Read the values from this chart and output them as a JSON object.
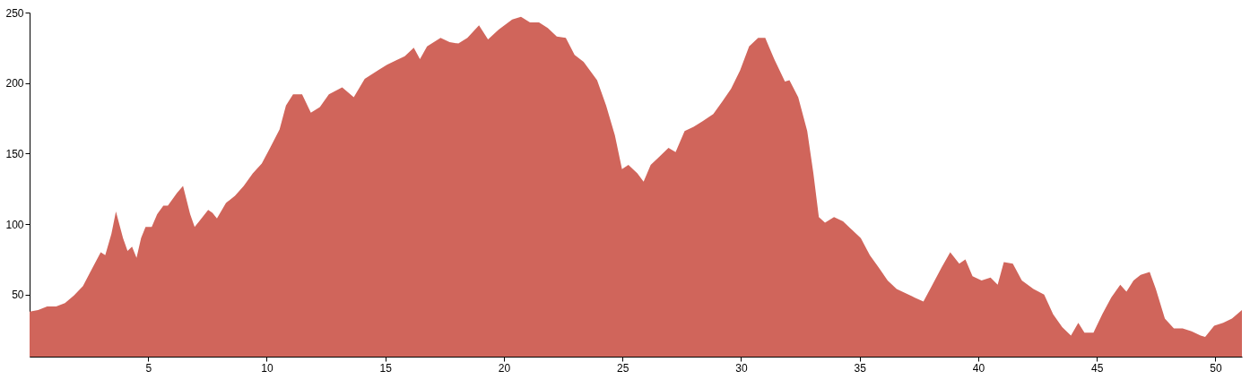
{
  "chart_data": {
    "type": "area",
    "x": [
      0,
      0.36,
      0.74,
      1.12,
      1.49,
      1.87,
      2.25,
      2.62,
      3.0,
      3.19,
      3.45,
      3.64,
      3.94,
      4.13,
      4.32,
      4.51,
      4.7,
      4.89,
      5.15,
      5.38,
      5.64,
      5.83,
      6.21,
      6.47,
      6.77,
      6.96,
      7.15,
      7.53,
      7.71,
      7.9,
      8.28,
      8.66,
      9.03,
      9.41,
      9.79,
      10.17,
      10.54,
      10.81,
      11.11,
      11.49,
      11.86,
      12.24,
      12.62,
      13.18,
      13.67,
      14.13,
      14.69,
      15.07,
      15.44,
      15.82,
      16.2,
      16.46,
      16.76,
      17.33,
      17.71,
      18.08,
      18.46,
      18.95,
      19.33,
      19.78,
      20.35,
      20.72,
      21.1,
      21.48,
      21.85,
      22.23,
      22.61,
      22.98,
      23.36,
      23.93,
      24.31,
      24.68,
      24.98,
      25.25,
      25.63,
      25.89,
      26.19,
      26.57,
      26.94,
      27.24,
      27.62,
      28.0,
      28.38,
      28.83,
      29.21,
      29.58,
      29.96,
      30.34,
      30.72,
      31.02,
      31.17,
      31.4,
      31.85,
      32.04,
      32.41,
      32.79,
      33.05,
      33.28,
      33.54,
      33.92,
      34.3,
      34.67,
      35.05,
      35.43,
      35.81,
      36.18,
      36.56,
      36.94,
      37.31,
      37.69,
      38.07,
      38.45,
      38.82,
      39.2,
      39.46,
      39.76,
      40.14,
      40.52,
      40.82,
      41.08,
      41.46,
      41.84,
      42.33,
      42.78,
      43.16,
      43.54,
      43.91,
      44.22,
      44.48,
      44.86,
      45.23,
      45.61,
      45.99,
      46.25,
      46.55,
      46.85,
      47.23,
      47.49,
      47.87,
      48.25,
      48.62,
      49.0,
      49.38,
      49.57,
      49.95,
      50.33,
      50.7,
      51.12
    ],
    "series": [
      {
        "color": "#d0655b",
        "values": [
          38,
          39,
          41.6,
          41.6,
          44,
          49.4,
          56,
          68,
          80,
          78,
          93,
          109,
          90,
          81,
          84,
          76,
          90,
          98,
          98,
          107,
          113,
          113,
          122,
          127,
          107,
          98,
          102,
          110,
          108,
          104,
          115,
          120,
          127,
          136,
          143,
          155,
          167,
          184,
          192,
          192,
          179,
          183,
          192,
          197,
          190,
          203,
          209,
          213,
          216,
          219,
          225,
          217,
          226,
          232,
          229,
          228,
          232,
          241,
          231,
          238,
          245,
          247,
          243,
          243,
          239,
          233,
          232,
          220,
          215,
          202,
          184,
          163,
          139,
          142,
          136,
          130,
          142,
          148,
          154,
          151,
          166,
          169,
          173,
          178,
          187,
          196,
          209,
          226,
          232,
          232,
          226,
          217,
          201,
          202,
          190,
          166,
          136,
          105,
          101,
          105,
          102,
          96,
          90,
          78,
          69,
          60,
          54,
          51,
          48,
          45,
          57,
          69,
          80,
          72,
          75,
          63,
          60,
          62,
          57,
          73,
          72,
          60,
          54,
          50,
          36,
          27,
          21,
          30,
          23,
          23,
          36,
          48,
          57,
          52,
          60,
          64,
          66,
          54,
          33,
          26,
          26,
          24,
          21,
          20,
          28,
          30,
          33,
          39
        ]
      }
    ],
    "xlim": [
      0,
      51.12
    ],
    "ylim": [
      6,
      250
    ],
    "xticks": [
      5,
      10,
      15,
      20,
      25,
      30,
      35,
      40,
      45,
      50
    ],
    "yticks": [
      50,
      100,
      150,
      200,
      250
    ],
    "grid": false
  }
}
